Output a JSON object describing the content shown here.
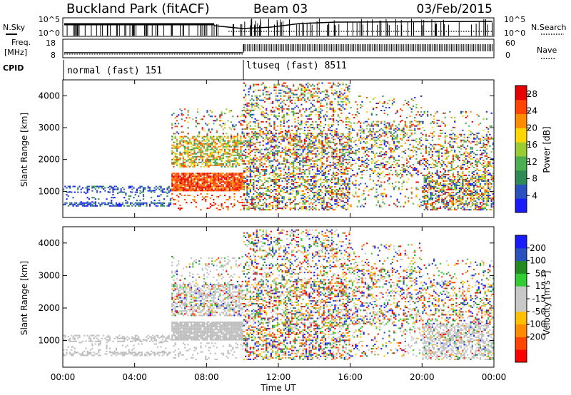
{
  "header": {
    "station": "Buckland Park (fitACF)",
    "beam": "Beam 03",
    "date": "03/Feb/2015"
  },
  "status_strip": {
    "nsky_label": "N.Sky",
    "nsearch_label": "N.Search",
    "noise_ticks": [
      "10^5",
      "10^0"
    ],
    "freq_label": "Freq.",
    "freq_unit": "[MHz]",
    "freq_ticks": [
      "18",
      "8"
    ],
    "nave_label": "Nave",
    "nave_ticks": [
      "60",
      "0"
    ],
    "cpid_label": "CPID",
    "modes": [
      {
        "text": "normal (fast)  151"
      },
      {
        "text": "ltuseq (fast)  8511"
      }
    ]
  },
  "colors": {
    "power_scale": [
      "#1a1aff",
      "#2a52be",
      "#2e8b57",
      "#4caf50",
      "#9acd32",
      "#ffd700",
      "#ff8c00",
      "#ff4500",
      "#e60000"
    ],
    "velocity_scale": [
      "#ff0000",
      "#ff4500",
      "#ff8c00",
      "#ffc000",
      "#c8c8c8",
      "#c8c8c8",
      "#32cd32",
      "#228b22",
      "#2a52be",
      "#1a1aff"
    ],
    "ground_scatter": "#bebebe"
  },
  "chart_data": [
    {
      "type": "heatmap",
      "name": "power",
      "ylabel": "Slant Range [km]",
      "xlabel": "",
      "xlim": [
        "00:00",
        "00:00"
      ],
      "ylim": [
        180,
        4500
      ],
      "yticks": [
        1000,
        2000,
        3000,
        4000
      ],
      "colorbar": {
        "label": "Power [dB]",
        "ticks": [
          4,
          8,
          12,
          16,
          20,
          24,
          28
        ],
        "range": [
          0,
          30
        ]
      },
      "approx_features": [
        {
          "feature": "near-range echoes",
          "time": "00:00-06:00",
          "range_km": [
            500,
            1150
          ],
          "power_db": "4-12"
        },
        {
          "feature": "strong scatter band",
          "time": "06:00-10:00",
          "range_km": [
            1000,
            1500
          ],
          "power_db": "24-30"
        },
        {
          "feature": "scatter patch",
          "time": "07:00-10:00",
          "range_km": [
            1800,
            2700
          ],
          "power_db": "12-28"
        },
        {
          "feature": "widespread echoes",
          "time": "10:00-24:00",
          "range_km": [
            400,
            4500
          ],
          "power_db": "4-28"
        }
      ]
    },
    {
      "type": "heatmap",
      "name": "velocity",
      "ylabel": "Slant Range [km]",
      "xlabel": "Time UT",
      "xlim": [
        "00:00",
        "00:00"
      ],
      "ylim": [
        180,
        4500
      ],
      "yticks": [
        1000,
        2000,
        3000,
        4000
      ],
      "xticks": [
        "00:00",
        "04:00",
        "08:00",
        "12:00",
        "16:00",
        "20:00",
        "00:00"
      ],
      "colorbar": {
        "label": "Velocity [m s^-1]",
        "ticks": [
          200,
          100,
          50,
          15,
          -15,
          -50,
          -100,
          -200
        ]
      },
      "approx_features": [
        {
          "feature": "ground scatter (grey)",
          "time": "00:00-10:00",
          "range_km": [
            500,
            1500
          ]
        },
        {
          "feature": "mixed velocities",
          "time": "10:00-24:00",
          "range_km": [
            400,
            4500
          ]
        }
      ]
    }
  ]
}
